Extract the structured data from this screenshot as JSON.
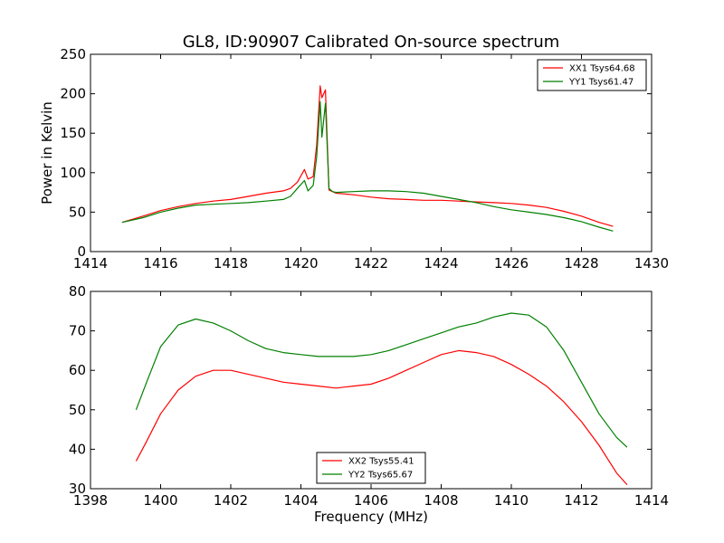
{
  "figure": {
    "title": "GL8, ID:90907 Calibrated On-source spectrum"
  },
  "chart_data": [
    {
      "type": "line",
      "title": "GL8, ID:90907 Calibrated On-source spectrum",
      "xlabel": "",
      "ylabel": "Power in Kelvin",
      "xlim": [
        1414,
        1430
      ],
      "ylim": [
        0,
        250
      ],
      "xticks": [
        1414,
        1416,
        1418,
        1420,
        1422,
        1424,
        1426,
        1428,
        1430
      ],
      "yticks": [
        0,
        50,
        100,
        150,
        200,
        250
      ],
      "legend_position": "top-right",
      "grid": false,
      "series": [
        {
          "name": "XX1 Tsys64.68",
          "color": "#ff0000",
          "x": [
            1414.9,
            1415.5,
            1416,
            1416.5,
            1417,
            1417.5,
            1418,
            1418.5,
            1419,
            1419.5,
            1419.7,
            1419.9,
            1420.1,
            1420.2,
            1420.35,
            1420.45,
            1420.55,
            1420.6,
            1420.7,
            1420.8,
            1420.9,
            1421,
            1421.5,
            1422,
            1422.5,
            1423,
            1423.5,
            1424,
            1424.5,
            1425,
            1425.5,
            1426,
            1426.5,
            1427,
            1427.5,
            1428,
            1428.5,
            1428.9
          ],
          "y": [
            37,
            45,
            52,
            57,
            61,
            64,
            66,
            70,
            74,
            77,
            80,
            88,
            104,
            92,
            95,
            135,
            210,
            195,
            205,
            78,
            76,
            74,
            72,
            69,
            67,
            66,
            65,
            65,
            64,
            63,
            62,
            61,
            59,
            56,
            51,
            45,
            37,
            32
          ]
        },
        {
          "name": "YY1 Tsys61.47",
          "color": "#008000",
          "x": [
            1414.9,
            1415.5,
            1416,
            1416.5,
            1417,
            1417.5,
            1418,
            1418.5,
            1419,
            1419.5,
            1419.7,
            1419.9,
            1420.1,
            1420.2,
            1420.35,
            1420.45,
            1420.55,
            1420.6,
            1420.7,
            1420.8,
            1420.9,
            1421,
            1421.5,
            1422,
            1422.5,
            1423,
            1423.5,
            1424,
            1424.5,
            1425,
            1425.5,
            1426,
            1426.5,
            1427,
            1427.5,
            1428,
            1428.5,
            1428.9
          ],
          "y": [
            37,
            43,
            50,
            55,
            59,
            60,
            61,
            62,
            64,
            66,
            70,
            80,
            90,
            77,
            84,
            120,
            190,
            145,
            188,
            80,
            76,
            75,
            76,
            77,
            77,
            76,
            74,
            70,
            66,
            62,
            57,
            53,
            50,
            47,
            43,
            38,
            31,
            26
          ]
        }
      ]
    },
    {
      "type": "line",
      "title": "",
      "xlabel": "Frequency (MHz)",
      "ylabel": "",
      "xlim": [
        1398,
        1414
      ],
      "ylim": [
        30,
        80
      ],
      "xticks": [
        1398,
        1400,
        1402,
        1404,
        1406,
        1408,
        1410,
        1412,
        1414
      ],
      "yticks": [
        30,
        40,
        50,
        60,
        70,
        80
      ],
      "legend_position": "bottom-center",
      "grid": false,
      "series": [
        {
          "name": "XX2 Tsys55.41",
          "color": "#ff0000",
          "x": [
            1399.3,
            1399.6,
            1400,
            1400.5,
            1401,
            1401.5,
            1402,
            1402.5,
            1403,
            1403.5,
            1404,
            1404.5,
            1405,
            1405.5,
            1406,
            1406.5,
            1407,
            1407.5,
            1408,
            1408.5,
            1409,
            1409.5,
            1410,
            1410.5,
            1411,
            1411.5,
            1412,
            1412.5,
            1413,
            1413.3
          ],
          "y": [
            37,
            42,
            49,
            55,
            58.5,
            60,
            60,
            59,
            58,
            57,
            56.5,
            56,
            55.5,
            56,
            56.5,
            58,
            60,
            62,
            64,
            65,
            64.5,
            63.5,
            61.5,
            59,
            56,
            52,
            47,
            41,
            34,
            31
          ]
        },
        {
          "name": "YY2 Tsys65.67",
          "color": "#008000",
          "x": [
            1399.3,
            1399.6,
            1400,
            1400.5,
            1401,
            1401.5,
            1402,
            1402.5,
            1403,
            1403.5,
            1404,
            1404.5,
            1405,
            1405.5,
            1406,
            1406.5,
            1407,
            1407.5,
            1408,
            1408.5,
            1409,
            1409.5,
            1410,
            1410.5,
            1411,
            1411.5,
            1412,
            1412.5,
            1413,
            1413.3
          ],
          "y": [
            50,
            57,
            66,
            71.5,
            73,
            72,
            70,
            67.5,
            65.5,
            64.5,
            64,
            63.5,
            63.5,
            63.5,
            64,
            65,
            66.5,
            68,
            69.5,
            71,
            72,
            73.5,
            74.5,
            74,
            71,
            65,
            57,
            49,
            43,
            40.5
          ]
        }
      ]
    }
  ]
}
